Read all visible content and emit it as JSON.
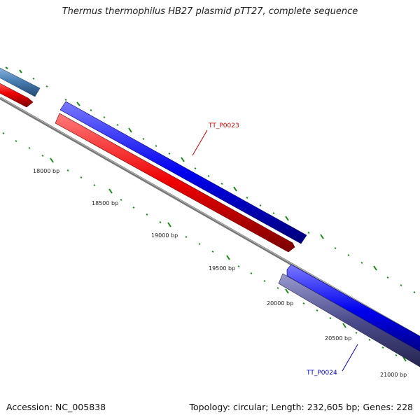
{
  "title": "Thermus thermophilus HB27 plasmid pTT27, complete sequence",
  "footer": {
    "accession": "Accession: NC_005838",
    "summary": "Topology: circular; Length: 232,605 bp; Genes: 228"
  },
  "bp_labels": [
    "18000 bp",
    "18500 bp",
    "19000 bp",
    "19500 bp",
    "20000 bp",
    "20500 bp",
    "21000 bp"
  ],
  "gene_labels": [
    {
      "text": "TT_P0023",
      "color": "#cc0000"
    },
    {
      "text": "TT_P0024",
      "color": "#0000cc"
    }
  ],
  "colors": {
    "forward_cds": "#0000ee",
    "reverse_cds": "#ee0000",
    "other_gene": "#4a7fb5",
    "other_gene_2": "#4a4a8a",
    "backbone": "#888888",
    "ticks": "#1a8a1a"
  }
}
